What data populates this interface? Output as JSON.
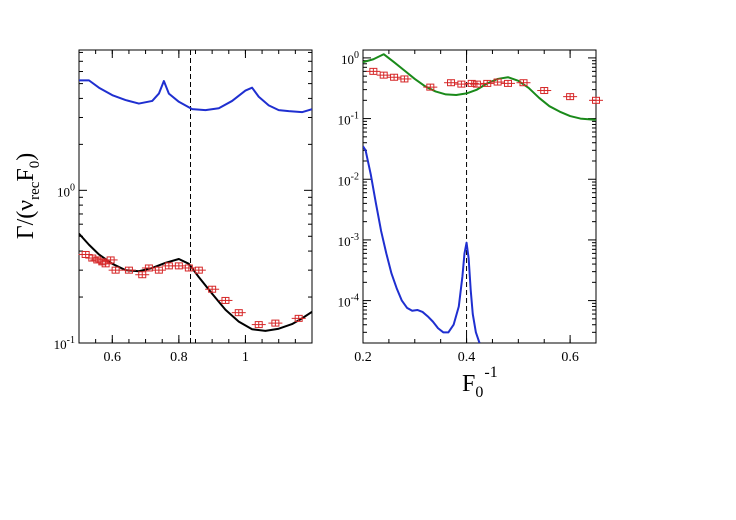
{
  "chart_data": [
    {
      "type": "line",
      "panel": "left",
      "y_scale": "log",
      "ylabel": "Γ/(ν_rec F_0)",
      "ylabel_parts": {
        "gamma": "Γ/(ν",
        "sub1": "rec",
        "f": "F",
        "sub2": "0",
        "close": ")"
      },
      "xlim": [
        0.5,
        1.2
      ],
      "ylim": [
        0.1,
        8.3
      ],
      "x_ticks": [
        {
          "v": 0.6,
          "label": "0.6"
        },
        {
          "v": 0.8,
          "label": "0.8"
        },
        {
          "v": 1.0,
          "label": "1"
        }
      ],
      "y_ticks": [
        {
          "v": 0.1,
          "base": "10",
          "exp": "-1"
        },
        {
          "v": 1,
          "base": "10",
          "exp": "0"
        }
      ],
      "vline": 0.835,
      "series": [
        {
          "name": "blue curve",
          "color": "#1f2fd0",
          "style": "line",
          "x": [
            0.5,
            0.53,
            0.56,
            0.6,
            0.64,
            0.68,
            0.72,
            0.74,
            0.755,
            0.77,
            0.8,
            0.84,
            0.88,
            0.92,
            0.96,
            1.0,
            1.02,
            1.04,
            1.07,
            1.1,
            1.13,
            1.17,
            1.2
          ],
          "y": [
            5.25,
            5.25,
            4.7,
            4.2,
            3.9,
            3.7,
            3.85,
            4.3,
            5.2,
            4.3,
            3.8,
            3.4,
            3.35,
            3.45,
            3.85,
            4.5,
            4.7,
            4.1,
            3.6,
            3.35,
            3.3,
            3.25,
            3.4
          ]
        },
        {
          "name": "black curve",
          "color": "#000000",
          "style": "line",
          "x": [
            0.5,
            0.53,
            0.56,
            0.6,
            0.64,
            0.68,
            0.72,
            0.76,
            0.8,
            0.83,
            0.86,
            0.9,
            0.94,
            0.98,
            1.02,
            1.06,
            1.1,
            1.14,
            1.17,
            1.2
          ],
          "y": [
            0.52,
            0.44,
            0.38,
            0.33,
            0.3,
            0.295,
            0.31,
            0.335,
            0.355,
            0.33,
            0.27,
            0.21,
            0.165,
            0.138,
            0.123,
            0.12,
            0.124,
            0.133,
            0.145,
            0.16
          ]
        },
        {
          "name": "red data",
          "color": "#d62728",
          "style": "points",
          "x": [
            0.52,
            0.54,
            0.555,
            0.57,
            0.58,
            0.595,
            0.61,
            0.65,
            0.69,
            0.71,
            0.74,
            0.77,
            0.8,
            0.83,
            0.86,
            0.9,
            0.94,
            0.98,
            1.04,
            1.09,
            1.16
          ],
          "y": [
            0.38,
            0.36,
            0.35,
            0.34,
            0.33,
            0.35,
            0.3,
            0.3,
            0.28,
            0.31,
            0.3,
            0.32,
            0.32,
            0.31,
            0.3,
            0.225,
            0.19,
            0.158,
            0.132,
            0.135,
            0.145
          ]
        }
      ]
    },
    {
      "type": "line",
      "panel": "right",
      "y_scale": "log",
      "xlabel": "F_0^-1",
      "xlabel_parts": {
        "f": "F",
        "sub": "0",
        "sup": "-1"
      },
      "xlim": [
        0.2,
        0.65
      ],
      "ylim": [
        2e-05,
        1.35
      ],
      "x_ticks": [
        {
          "v": 0.2,
          "label": "0.2"
        },
        {
          "v": 0.4,
          "label": "0.4"
        },
        {
          "v": 0.6,
          "label": "0.6"
        }
      ],
      "y_ticks": [
        {
          "v": 1,
          "base": "10",
          "exp": "0"
        },
        {
          "v": 0.1,
          "base": "10",
          "exp": "-1"
        },
        {
          "v": 0.01,
          "base": "10",
          "exp": "-2"
        },
        {
          "v": 0.001,
          "base": "10",
          "exp": "-3"
        },
        {
          "v": 0.0001,
          "base": "10",
          "exp": "-4"
        }
      ],
      "vline": 0.4,
      "series": [
        {
          "name": "green curve",
          "color": "#1a8a1a",
          "style": "line",
          "x": [
            0.2,
            0.22,
            0.24,
            0.26,
            0.28,
            0.3,
            0.32,
            0.34,
            0.36,
            0.38,
            0.4,
            0.42,
            0.44,
            0.46,
            0.48,
            0.5,
            0.52,
            0.54,
            0.56,
            0.58,
            0.6,
            0.62,
            0.65
          ],
          "y": [
            0.85,
            0.95,
            1.15,
            0.85,
            0.62,
            0.45,
            0.34,
            0.28,
            0.25,
            0.245,
            0.26,
            0.3,
            0.38,
            0.45,
            0.48,
            0.42,
            0.32,
            0.22,
            0.16,
            0.13,
            0.11,
            0.1,
            0.095
          ]
        },
        {
          "name": "blue curve",
          "color": "#1f2fd0",
          "style": "line",
          "x": [
            0.2,
            0.205,
            0.215,
            0.225,
            0.235,
            0.245,
            0.255,
            0.265,
            0.275,
            0.285,
            0.295,
            0.305,
            0.315,
            0.325,
            0.335,
            0.345,
            0.355,
            0.365,
            0.375,
            0.385,
            0.392,
            0.396,
            0.4,
            0.404,
            0.408,
            0.412,
            0.418,
            0.425
          ],
          "y": [
            0.035,
            0.03,
            0.012,
            0.004,
            0.0014,
            0.0006,
            0.00028,
            0.00016,
            0.0001,
            7.6e-05,
            6.8e-05,
            7e-05,
            6.5e-05,
            5.5e-05,
            4.5e-05,
            3.5e-05,
            3e-05,
            3e-05,
            4e-05,
            8e-05,
            0.00025,
            0.0006,
            0.0009,
            0.0005,
            0.00015,
            6e-05,
            3e-05,
            2e-05
          ]
        },
        {
          "name": "red data",
          "color": "#d62728",
          "style": "points",
          "x": [
            0.22,
            0.24,
            0.26,
            0.28,
            0.33,
            0.37,
            0.39,
            0.41,
            0.42,
            0.44,
            0.46,
            0.48,
            0.51,
            0.55,
            0.6,
            0.65
          ],
          "y": [
            0.6,
            0.52,
            0.48,
            0.45,
            0.33,
            0.39,
            0.37,
            0.38,
            0.37,
            0.38,
            0.4,
            0.38,
            0.39,
            0.29,
            0.23,
            0.2
          ]
        }
      ]
    }
  ]
}
